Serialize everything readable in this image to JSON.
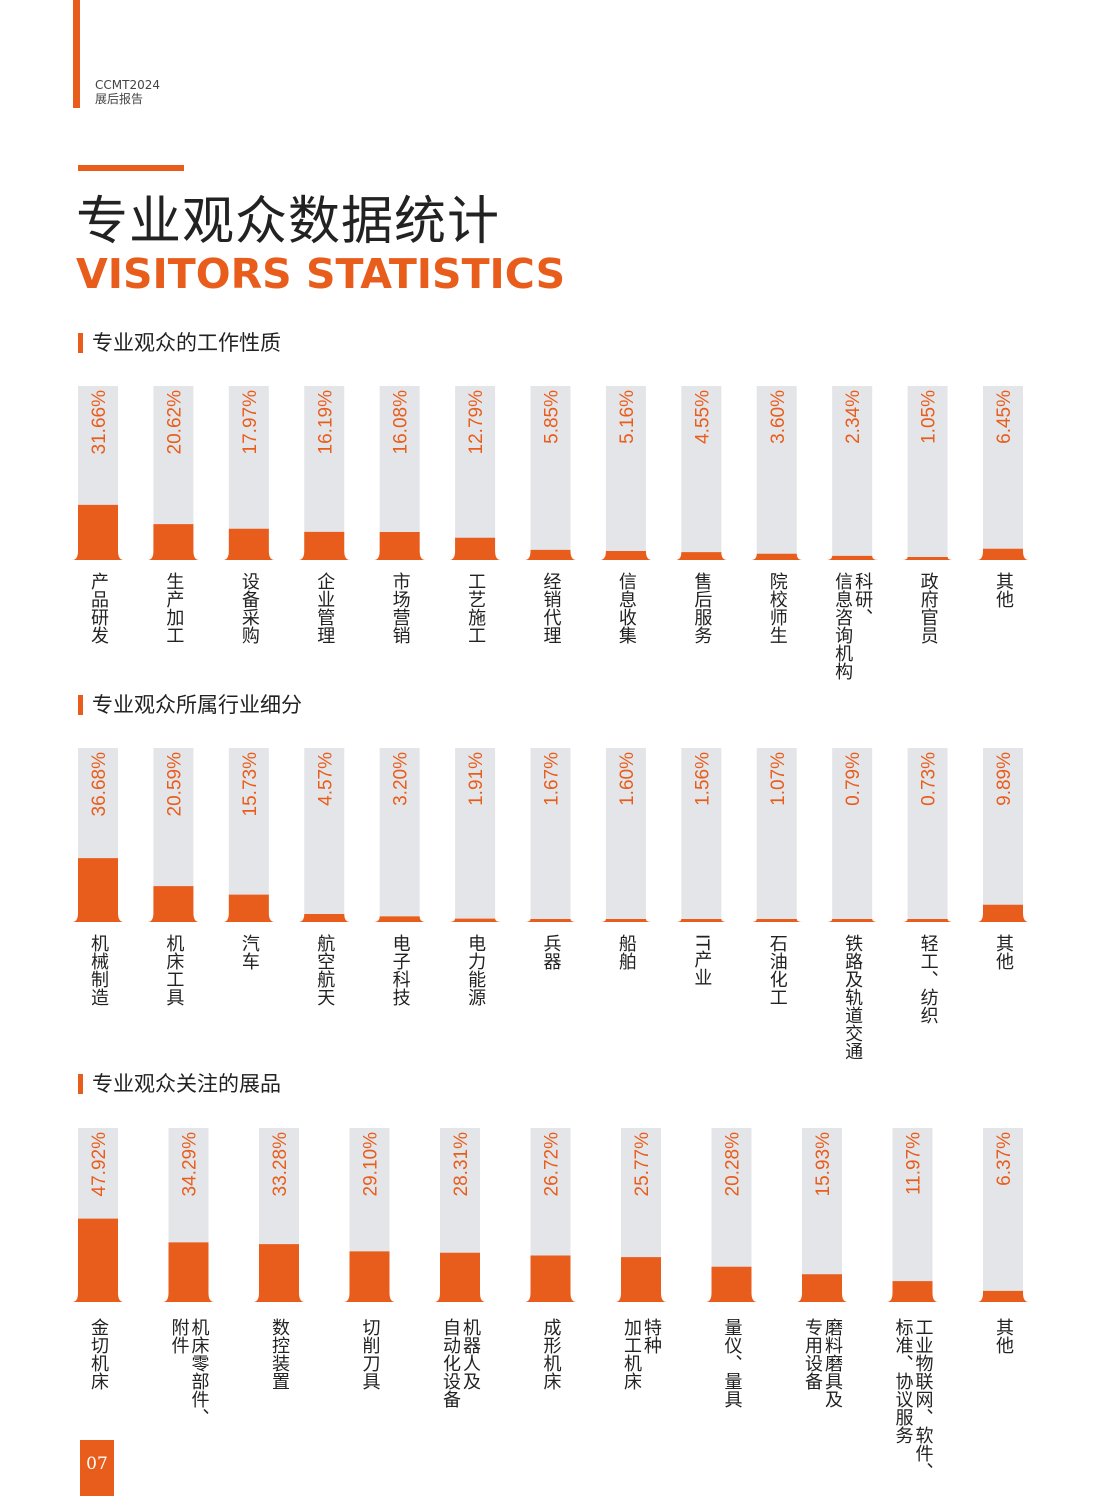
{
  "header": {
    "brand_line1": "CCMT2024",
    "brand_line2": "展后报告"
  },
  "title": {
    "cn": "专业观众数据统计",
    "en": "VISITORS STATISTICS"
  },
  "colors": {
    "accent": "#e85d1c",
    "track": "#e4e5e8",
    "label": "#e85d1c"
  },
  "page_number": "07",
  "chart_data": [
    {
      "type": "bar",
      "title": "专业观众的工作性质",
      "categories": [
        "产品研发",
        "生产加工",
        "设备采购",
        "企业管理",
        "市场营销",
        "工艺施工",
        "经销代理",
        "信息收集",
        "售后服务",
        "院校师生",
        "科研、信息咨询机构",
        "政府官员",
        "其他"
      ],
      "category_labels": [
        "产品研发",
        "生产加工",
        "设备采购",
        "企业管理",
        "市场营销",
        "工艺施工",
        "经销代理",
        "信息收集",
        "售后服务",
        "院校师生",
        "科研、\n信息咨询机构",
        "政府官员",
        "其他"
      ],
      "values": [
        31.66,
        20.62,
        17.97,
        16.19,
        16.08,
        12.79,
        5.85,
        5.16,
        4.55,
        3.6,
        2.34,
        1.05,
        6.45
      ],
      "value_labels": [
        "31.66%",
        "20.62%",
        "17.97%",
        "16.19%",
        "16.08%",
        "12.79%",
        "5.85%",
        "5.16%",
        "4.55%",
        "3.60%",
        "2.34%",
        "1.05%",
        "6.45%"
      ],
      "ylim": [
        0,
        100
      ]
    },
    {
      "type": "bar",
      "title": "专业观众所属行业细分",
      "categories": [
        "机械制造",
        "机床工具",
        "汽车",
        "航空航天",
        "电子科技",
        "电力能源",
        "兵器",
        "船舶",
        "IT产业",
        "石油化工",
        "铁路及轨道交通",
        "轻工、纺织",
        "其他"
      ],
      "category_labels": [
        "机械制造",
        "机床工具",
        "汽车",
        "航空航天",
        "电子科技",
        "电力能源",
        "兵器",
        "船舶",
        "IT产业",
        "石油化工",
        "铁路及轨道交通",
        "轻工、纺织",
        "其他"
      ],
      "values": [
        36.68,
        20.59,
        15.73,
        4.57,
        3.2,
        1.91,
        1.67,
        1.6,
        1.56,
        1.07,
        0.79,
        0.73,
        9.89
      ],
      "value_labels": [
        "36.68%",
        "20.59%",
        "15.73%",
        "4.57%",
        "3.20%",
        "1.91%",
        "1.67%",
        "1.60%",
        "1.56%",
        "1.07%",
        "0.79%",
        "0.73%",
        "9.89%"
      ],
      "ylim": [
        0,
        100
      ]
    },
    {
      "type": "bar",
      "title": "专业观众关注的展品",
      "categories": [
        "金切机床",
        "机床零部件、附件",
        "数控装置",
        "切削刀具",
        "机器人及自动化设备",
        "成形机床",
        "特种加工机床",
        "量仪、量具",
        "磨料磨具及专用设备",
        "工业物联网、软件、标准、协议服务",
        "其他"
      ],
      "category_labels": [
        "金切机床",
        "机床零部件、\n附件",
        "数控装置",
        "切削刀具",
        "机器人及\n自动化设备",
        "成形机床",
        "特种\n加工机床",
        "量仪、量具",
        "磨料磨具及\n专用设备",
        "工业物联网、软件、\n标准、协议服务",
        "其他"
      ],
      "values": [
        47.92,
        34.29,
        33.28,
        29.1,
        28.31,
        26.72,
        25.77,
        20.28,
        15.93,
        11.97,
        6.37
      ],
      "value_labels": [
        "47.92%",
        "34.29%",
        "33.28%",
        "29.10%",
        "28.31%",
        "26.72%",
        "25.77%",
        "20.28%",
        "15.93%",
        "11.97%",
        "6.37%"
      ],
      "ylim": [
        0,
        100
      ]
    }
  ]
}
